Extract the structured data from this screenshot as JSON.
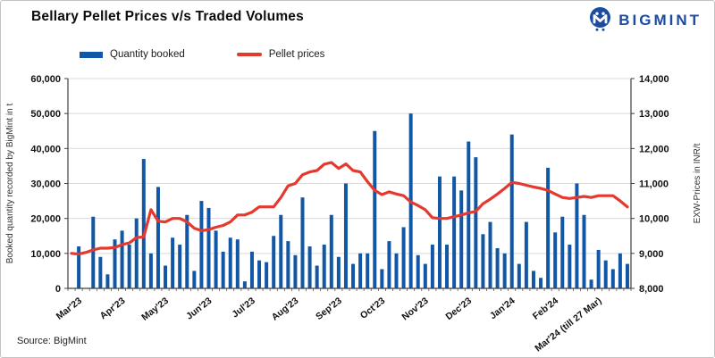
{
  "header": {
    "title": "Bellary Pellet Prices v/s Traded Volumes",
    "brand": "BIGMINT"
  },
  "colors": {
    "bar": "#1257a5",
    "line": "#e5392f",
    "brand": "#1b4ba2",
    "grid": "#d9d9d9",
    "axis": "#404040"
  },
  "legend": [
    {
      "label": "Quantity booked",
      "type": "bar",
      "color": "#1257a5"
    },
    {
      "label": "Pellet prices",
      "type": "line",
      "color": "#e5392f"
    }
  ],
  "source": "Source: BigMint",
  "icons": {
    "logo": "bigmint-logo-icon"
  },
  "chart_data": {
    "type": "bar",
    "subtype": "bar+line dual-axis",
    "title": "Bellary Pellet Prices v/s Traded Volumes",
    "grid": true,
    "legend_position": "top",
    "months": [
      "Mar'23",
      "Apr'23",
      "May'23",
      "Jun'23",
      "Jul'23",
      "Aug'23",
      "Sep'23",
      "Oct'23",
      "Nov'23",
      "Dec'23",
      "Jan'24",
      "Feb'24",
      "Mar'24 (till 27 Mar)"
    ],
    "bars_per_month": 6,
    "left_axis": {
      "title": "Booked quantity recorded by BigMint in t",
      "min": 0,
      "max": 60000,
      "step": 10000
    },
    "right_axis": {
      "title": "EXW-Prices in INR/t",
      "min": 8000,
      "max": 14000,
      "step": 1000
    },
    "series": [
      {
        "name": "Quantity booked",
        "type": "bar",
        "axis": "left",
        "color": "#1257a5",
        "values": [
          0,
          12000,
          0,
          20500,
          9000,
          4000,
          14000,
          16500,
          12500,
          20000,
          37000,
          10000,
          29000,
          6500,
          14500,
          12500,
          21000,
          5000,
          25000,
          23000,
          16500,
          10500,
          14500,
          14000,
          2000,
          10500,
          8000,
          7500,
          15000,
          21000,
          13500,
          9500,
          26000,
          12000,
          6500,
          12500,
          21000,
          9000,
          30000,
          7000,
          10000,
          10000,
          45000,
          5500,
          13500,
          10000,
          17500,
          50000,
          9500,
          7000,
          12500,
          32000,
          12500,
          32000,
          28000,
          42000,
          37500,
          15500,
          19000,
          11500,
          10000,
          44000,
          7000,
          19000,
          5000,
          3000,
          34500,
          16000,
          20500,
          12500,
          30000,
          21000,
          2500,
          11000,
          8000,
          5500,
          10000,
          7000
        ]
      },
      {
        "name": "Pellet prices",
        "type": "line",
        "axis": "right",
        "color": "#e5392f",
        "values": [
          9000,
          8980,
          9030,
          9100,
          9150,
          9150,
          9170,
          9250,
          9300,
          9450,
          9470,
          10250,
          9920,
          9900,
          10000,
          10000,
          9900,
          9720,
          9650,
          9680,
          9750,
          9800,
          9900,
          10100,
          10100,
          10180,
          10330,
          10330,
          10330,
          10600,
          10930,
          11000,
          11250,
          11330,
          11370,
          11550,
          11600,
          11430,
          11560,
          11370,
          11330,
          11050,
          10800,
          10680,
          10760,
          10700,
          10650,
          10470,
          10370,
          10250,
          10020,
          10000,
          10000,
          10050,
          10100,
          10160,
          10200,
          10420,
          10550,
          10700,
          10860,
          11030,
          11000,
          10950,
          10900,
          10860,
          10800,
          10700,
          10600,
          10570,
          10600,
          10630,
          10600,
          10650,
          10650,
          10650,
          10500,
          10330
        ]
      }
    ]
  }
}
